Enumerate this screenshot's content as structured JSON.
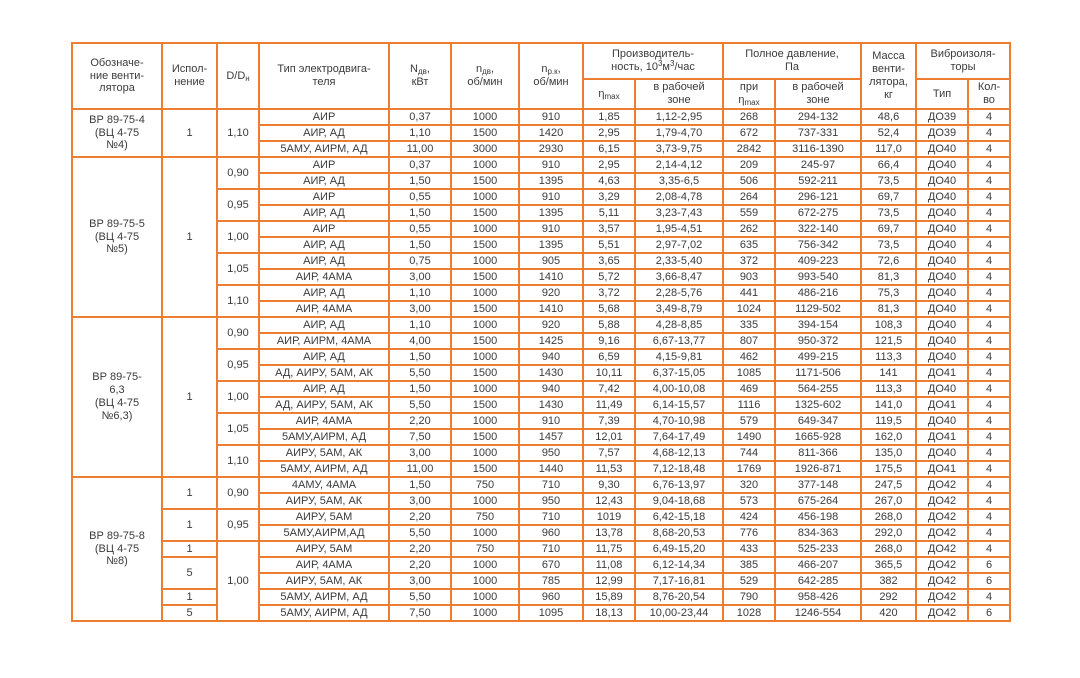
{
  "page": {
    "background": "#ffffff"
  },
  "table": {
    "border_color": "#ED7D31",
    "text_color": "#3B3B3B",
    "header": {
      "fan": [
        {
          "t": "Обозначе-\nние венти-\nлятора"
        }
      ],
      "isp": [
        {
          "t": "Испол-\nнение"
        }
      ],
      "dd": [
        {
          "t": "D/D"
        },
        {
          "t": "н",
          "sub": true
        }
      ],
      "motor": [
        {
          "t": "Тип электродвига-\nтеля"
        }
      ],
      "power": [
        {
          "t": "N"
        },
        {
          "t": "дв",
          "sub": true
        },
        {
          "t": ",\nкВт"
        }
      ],
      "rpm_motor": [
        {
          "t": "n"
        },
        {
          "t": "дв",
          "sub": true
        },
        {
          "t": ",\nоб/мин"
        }
      ],
      "rpm_wheel": [
        {
          "t": "n"
        },
        {
          "t": "р.к",
          "sub": true
        },
        {
          "t": ",\nоб/мин"
        }
      ],
      "perf_group": [
        {
          "t": "Производитель-\nность, 10"
        },
        {
          "t": "3",
          "sup": true
        },
        {
          "t": "м"
        },
        {
          "t": "3",
          "sup": true
        },
        {
          "t": "/час"
        }
      ],
      "perf_max": [
        {
          "t": "η"
        },
        {
          "t": "max",
          "sub": true
        }
      ],
      "perf_zone": [
        {
          "t": "в рабочей\nзоне"
        }
      ],
      "pressure_group": [
        {
          "t": "Полное давление,\nПа"
        }
      ],
      "pressure_max": [
        {
          "t": "при\nη"
        },
        {
          "t": "max",
          "sub": true
        }
      ],
      "pressure_zone": [
        {
          "t": "в рабочей\nзоне"
        }
      ],
      "mass": [
        {
          "t": "Масса\nвенти-\nлятора,\nкг"
        }
      ],
      "vibro_group": [
        {
          "t": "Виброизоля-\nторы"
        }
      ],
      "vibro_type": [
        {
          "t": "Тип"
        }
      ],
      "vibro_qty": [
        {
          "t": "Кол-\nво"
        }
      ]
    },
    "rows": [
      {
        "fan": {
          "text": "ВР 89-75-4\n(ВЦ 4-75\n№4)",
          "rowspan": 3
        },
        "isp": {
          "text": "1",
          "rowspan": 3
        },
        "dd": {
          "text": "1,10",
          "rowspan": 3
        },
        "cells": [
          "АИР",
          "0,37",
          "1000",
          "910",
          "1,85",
          "1,12-2,95",
          "268",
          "294-132",
          "48,6",
          "ДО39",
          "4"
        ]
      },
      {
        "cells": [
          "АИР, АД",
          "1,10",
          "1500",
          "1420",
          "2,95",
          "1,79-4,70",
          "672",
          "737-331",
          "52,4",
          "ДО39",
          "4"
        ]
      },
      {
        "cells": [
          "5АМУ, АИРМ, АД",
          "11,00",
          "3000",
          "2930",
          "6,15",
          "3,73-9,75",
          "2842",
          "3116-1390",
          "117,0",
          "ДО40",
          "4"
        ]
      },
      {
        "fan": {
          "text": "ВР 89-75-5\n(ВЦ 4-75\n№5)",
          "rowspan": 10
        },
        "isp": {
          "text": "1",
          "rowspan": 10
        },
        "dd": {
          "text": "0,90",
          "rowspan": 2
        },
        "cells": [
          "АИР",
          "0,37",
          "1000",
          "910",
          "2,95",
          "2,14-4,12",
          "209",
          "245-97",
          "66,4",
          "ДО40",
          "4"
        ]
      },
      {
        "cells": [
          "АИР, АД",
          "1,50",
          "1500",
          "1395",
          "4,63",
          "3,35-6,5",
          "506",
          "592-211",
          "73,5",
          "ДО40",
          "4"
        ]
      },
      {
        "dd": {
          "text": "0,95",
          "rowspan": 2
        },
        "cells": [
          "АИР",
          "0,55",
          "1000",
          "910",
          "3,29",
          "2,08-4,78",
          "264",
          "296-121",
          "69,7",
          "ДО40",
          "4"
        ]
      },
      {
        "cells": [
          "АИР, АД",
          "1,50",
          "1500",
          "1395",
          "5,11",
          "3,23-7,43",
          "559",
          "672-275",
          "73,5",
          "ДО40",
          "4"
        ]
      },
      {
        "dd": {
          "text": "1,00",
          "rowspan": 2
        },
        "cells": [
          "АИР",
          "0,55",
          "1000",
          "910",
          "3,57",
          "1,95-4,51",
          "262",
          "322-140",
          "69,7",
          "ДО40",
          "4"
        ]
      },
      {
        "cells": [
          "АИР, АД",
          "1,50",
          "1500",
          "1395",
          "5,51",
          "2,97-7,02",
          "635",
          "756-342",
          "73,5",
          "ДО40",
          "4"
        ]
      },
      {
        "dd": {
          "text": "1,05",
          "rowspan": 2
        },
        "cells": [
          "АИР, АД",
          "0,75",
          "1000",
          "905",
          "3,65",
          "2,33-5,40",
          "372",
          "409-223",
          "72,6",
          "ДО40",
          "4"
        ]
      },
      {
        "cells": [
          "АИР, 4АМА",
          "3,00",
          "1500",
          "1410",
          "5,72",
          "3,66-8,47",
          "903",
          "993-540",
          "81,3",
          "ДО40",
          "4"
        ]
      },
      {
        "dd": {
          "text": "1,10",
          "rowspan": 2
        },
        "cells": [
          "АИР, АД",
          "1,10",
          "1000",
          "920",
          "3,72",
          "2,28-5,76",
          "441",
          "486-216",
          "75,3",
          "ДО40",
          "4"
        ]
      },
      {
        "cells": [
          "АИР, 4АМА",
          "3,00",
          "1500",
          "1410",
          "5,68",
          "3,49-8,79",
          "1024",
          "1129-502",
          "81,3",
          "ДО40",
          "4"
        ]
      },
      {
        "fan": {
          "text": "ВР 89-75-\n6,3\n(ВЦ 4-75\n№6,3)",
          "rowspan": 10
        },
        "isp": {
          "text": "1",
          "rowspan": 10
        },
        "dd": {
          "text": "0,90",
          "rowspan": 2
        },
        "cells": [
          "АИР, АД",
          "1,10",
          "1000",
          "920",
          "5,88",
          "4,28-8,85",
          "335",
          "394-154",
          "108,3",
          "ДО40",
          "4"
        ]
      },
      {
        "cells": [
          "АИР, АИРМ, 4АМА",
          "4,00",
          "1500",
          "1425",
          "9,16",
          "6,67-13,77",
          "807",
          "950-372",
          "121,5",
          "ДО40",
          "4"
        ]
      },
      {
        "dd": {
          "text": "0,95",
          "rowspan": 2
        },
        "cells": [
          "АИР, АД",
          "1,50",
          "1000",
          "940",
          "6,59",
          "4,15-9,81",
          "462",
          "499-215",
          "113,3",
          "ДО40",
          "4"
        ]
      },
      {
        "cells": [
          "АД, АИРУ, 5АМ, АК",
          "5,50",
          "1500",
          "1430",
          "10,11",
          "6,37-15,05",
          "1085",
          "1171-506",
          "141",
          "ДО41",
          "4"
        ]
      },
      {
        "dd": {
          "text": "1,00",
          "rowspan": 2
        },
        "cells": [
          "АИР, АД",
          "1,50",
          "1000",
          "940",
          "7,42",
          "4,00-10,08",
          "469",
          "564-255",
          "113,3",
          "ДО40",
          "4"
        ]
      },
      {
        "cells": [
          "АД, АИРУ, 5АМ, АК",
          "5,50",
          "1500",
          "1430",
          "11,49",
          "6,14-15,57",
          "1116",
          "1325-602",
          "141,0",
          "ДО41",
          "4"
        ]
      },
      {
        "dd": {
          "text": "1,05",
          "rowspan": 2
        },
        "cells": [
          "АИР, 4АМА",
          "2,20",
          "1000",
          "910",
          "7,39",
          "4,70-10,98",
          "579",
          "649-347",
          "119,5",
          "ДО40",
          "4"
        ]
      },
      {
        "cells": [
          "5АМУ,АИРМ, АД",
          "7,50",
          "1500",
          "1457",
          "12,01",
          "7,64-17,49",
          "1490",
          "1665-928",
          "162,0",
          "ДО41",
          "4"
        ]
      },
      {
        "dd": {
          "text": "1,10",
          "rowspan": 2
        },
        "cells": [
          "АИРУ, 5АМ, АК",
          "3,00",
          "1000",
          "950",
          "7,57",
          "4,68-12,13",
          "744",
          "811-366",
          "135,0",
          "ДО40",
          "4"
        ]
      },
      {
        "cells": [
          "5АМУ, АИРМ, АД",
          "11,00",
          "1500",
          "1440",
          "11,53",
          "7,12-18,48",
          "1769",
          "1926-871",
          "175,5",
          "ДО41",
          "4"
        ]
      },
      {
        "fan": {
          "text": "ВР 89-75-8\n(ВЦ 4-75\n№8)",
          "rowspan": 9
        },
        "isp": {
          "text": "1",
          "rowspan": 2
        },
        "dd": {
          "text": "0,90",
          "rowspan": 2
        },
        "cells": [
          "4АМУ, 4АМА",
          "1,50",
          "750",
          "710",
          "9,30",
          "6,76-13,97",
          "320",
          "377-148",
          "247,5",
          "ДО42",
          "4"
        ]
      },
      {
        "cells": [
          "АИРУ, 5АМ, АК",
          "3,00",
          "1000",
          "950",
          "12,43",
          "9,04-18,68",
          "573",
          "675-264",
          "267,0",
          "ДО42",
          "4"
        ]
      },
      {
        "isp": {
          "text": "1",
          "rowspan": 2
        },
        "dd": {
          "text": "0,95",
          "rowspan": 2
        },
        "cells": [
          "АИРУ, 5АМ",
          "2,20",
          "750",
          "710",
          "1019",
          "6,42-15,18",
          "424",
          "456-198",
          "268,0",
          "ДО42",
          "4"
        ]
      },
      {
        "cells": [
          "5АМУ,АИРМ,АД",
          "5,50",
          "1000",
          "960",
          "13,78",
          "8,68-20,53",
          "776",
          "834-363",
          "292,0",
          "ДО42",
          "4"
        ]
      },
      {
        "isp": {
          "text": "1",
          "rowspan": 1
        },
        "dd": {
          "text": "1,00",
          "rowspan": 5
        },
        "cells": [
          "АИРУ, 5АМ",
          "2,20",
          "750",
          "710",
          "11,75",
          "6,49-15,20",
          "433",
          "525-233",
          "268,0",
          "ДО42",
          "4"
        ]
      },
      {
        "isp": {
          "text": "5",
          "rowspan": 2
        },
        "cells": [
          "АИР, 4АМА",
          "2,20",
          "1000",
          "670",
          "11,08",
          "6,12-14,34",
          "385",
          "466-207",
          "365,5",
          "ДО42",
          "6"
        ]
      },
      {
        "cells": [
          "АИРУ, 5АМ, АК",
          "3,00",
          "1000",
          "785",
          "12,99",
          "7,17-16,81",
          "529",
          "642-285",
          "382",
          "ДО42",
          "6"
        ]
      },
      {
        "isp": {
          "text": "1",
          "rowspan": 1
        },
        "cells": [
          "5АМУ, АИРМ, АД",
          "5,50",
          "1000",
          "960",
          "15,89",
          "8,76-20,54",
          "790",
          "958-426",
          "292",
          "ДО42",
          "4"
        ]
      },
      {
        "isp": {
          "text": "5",
          "rowspan": 1
        },
        "cells": [
          "5АМУ, АИРМ, АД",
          "7,50",
          "1000",
          "1095",
          "18,13",
          "10,00-23,44",
          "1028",
          "1246-554",
          "420",
          "ДО42",
          "6"
        ]
      }
    ]
  }
}
